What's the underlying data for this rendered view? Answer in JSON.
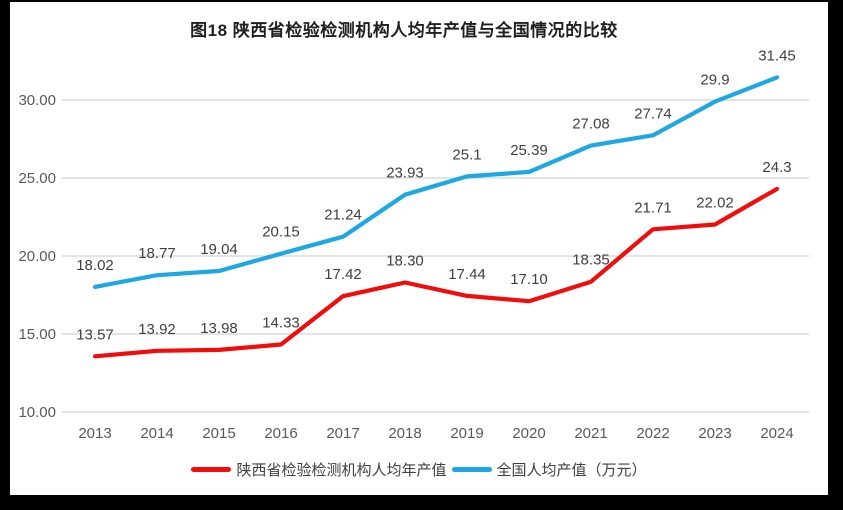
{
  "frame": {
    "background_color": "#000000",
    "canvas_color": "#ffffff"
  },
  "chart_data": {
    "type": "line",
    "title": "图18 陕西省检验检测机构人均年产值与全国情况的比较",
    "categories": [
      "2013",
      "2014",
      "2015",
      "2016",
      "2017",
      "2018",
      "2019",
      "2020",
      "2021",
      "2022",
      "2023",
      "2024"
    ],
    "series": [
      {
        "name": "陕西省检验检测机构人均年产值",
        "color": "#f20d0d",
        "values": [
          13.57,
          13.92,
          13.98,
          14.33,
          17.42,
          18.3,
          17.44,
          17.1,
          18.35,
          21.71,
          22.02,
          24.3
        ],
        "point_labels": [
          "13.57",
          "13.92",
          "13.98",
          "14.33",
          "17.42",
          "18.30",
          "17.44",
          "17.10",
          "18.35",
          "21.71",
          "22.02",
          "24.3"
        ]
      },
      {
        "name": "全国人均产值（万元）",
        "color": "#1ea7e1",
        "values": [
          18.02,
          18.77,
          19.04,
          20.15,
          21.24,
          23.93,
          25.1,
          25.39,
          27.08,
          27.74,
          29.9,
          31.45
        ],
        "point_labels": [
          "18.02",
          "18.77",
          "19.04",
          "20.15",
          "21.24",
          "23.93",
          "25.1",
          "25.39",
          "27.08",
          "27.74",
          "29.9",
          "31.45"
        ]
      }
    ],
    "y_axis": {
      "min": 10,
      "max": 30,
      "step": 5,
      "tick_labels": [
        "10.00",
        "15.00",
        "20.00",
        "25.00",
        "30.00"
      ]
    },
    "grid": "horizontal-only",
    "legend_position": "bottom",
    "styles": {
      "gridline_color": "#dcdcdc",
      "tick_label_color": "#595959",
      "data_label_color": "#404040",
      "title_color": "#1f1f1f"
    }
  }
}
